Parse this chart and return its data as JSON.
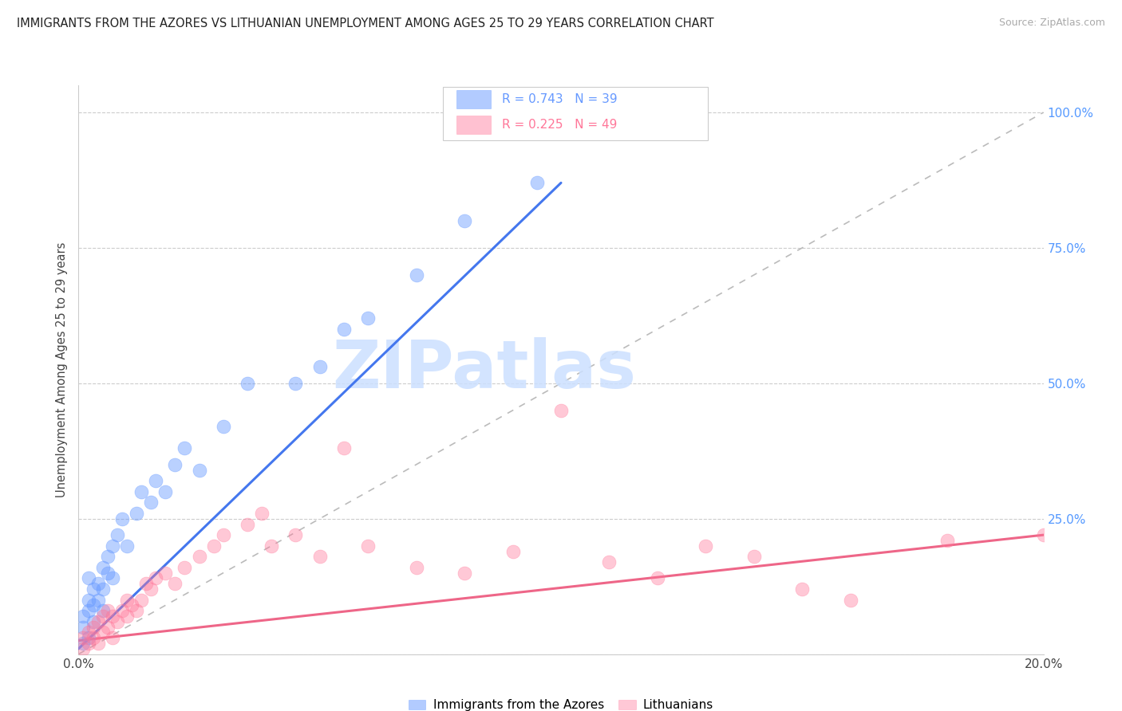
{
  "title": "IMMIGRANTS FROM THE AZORES VS LITHUANIAN UNEMPLOYMENT AMONG AGES 25 TO 29 YEARS CORRELATION CHART",
  "source": "Source: ZipAtlas.com",
  "ylabel": "Unemployment Among Ages 25 to 29 years",
  "xlim": [
    0.0,
    0.2
  ],
  "ylim": [
    0.0,
    1.05
  ],
  "yticks": [
    0.0,
    0.25,
    0.5,
    0.75,
    1.0
  ],
  "ytick_labels": [
    "",
    "25.0%",
    "50.0%",
    "75.0%",
    "100.0%"
  ],
  "xtick_labels": [
    "0.0%",
    "20.0%"
  ],
  "right_tick_color": "#5599ff",
  "pink_color": "#ff7799",
  "blue_color": "#6699ff",
  "blue_line_color": "#4477ee",
  "pink_line_color": "#ee6688",
  "blue_R": 0.743,
  "blue_N": 39,
  "pink_R": 0.225,
  "pink_N": 49,
  "background_color": "#ffffff",
  "grid_color": "#cccccc",
  "watermark_text": "ZIPatlas",
  "watermark_color": "#cce0ff",
  "legend_labels": [
    "Immigrants from the Azores",
    "Lithuanians"
  ],
  "blue_scatter_x": [
    0.001,
    0.001,
    0.001,
    0.002,
    0.002,
    0.002,
    0.002,
    0.003,
    0.003,
    0.003,
    0.004,
    0.004,
    0.005,
    0.005,
    0.005,
    0.006,
    0.006,
    0.007,
    0.007,
    0.008,
    0.009,
    0.01,
    0.012,
    0.013,
    0.015,
    0.016,
    0.018,
    0.02,
    0.022,
    0.025,
    0.03,
    0.035,
    0.045,
    0.05,
    0.055,
    0.06,
    0.07,
    0.08,
    0.095
  ],
  "blue_scatter_y": [
    0.02,
    0.05,
    0.07,
    0.03,
    0.08,
    0.1,
    0.14,
    0.06,
    0.09,
    0.12,
    0.1,
    0.13,
    0.08,
    0.12,
    0.16,
    0.15,
    0.18,
    0.2,
    0.14,
    0.22,
    0.25,
    0.2,
    0.26,
    0.3,
    0.28,
    0.32,
    0.3,
    0.35,
    0.38,
    0.34,
    0.42,
    0.5,
    0.5,
    0.53,
    0.6,
    0.62,
    0.7,
    0.8,
    0.87
  ],
  "pink_scatter_x": [
    0.001,
    0.001,
    0.002,
    0.002,
    0.003,
    0.003,
    0.004,
    0.004,
    0.005,
    0.005,
    0.006,
    0.006,
    0.007,
    0.007,
    0.008,
    0.009,
    0.01,
    0.01,
    0.011,
    0.012,
    0.013,
    0.014,
    0.015,
    0.016,
    0.018,
    0.02,
    0.022,
    0.025,
    0.028,
    0.03,
    0.035,
    0.038,
    0.04,
    0.045,
    0.05,
    0.055,
    0.06,
    0.07,
    0.08,
    0.09,
    0.1,
    0.11,
    0.12,
    0.13,
    0.14,
    0.15,
    0.16,
    0.18,
    0.2
  ],
  "pink_scatter_y": [
    0.01,
    0.03,
    0.02,
    0.04,
    0.03,
    0.05,
    0.02,
    0.06,
    0.04,
    0.07,
    0.05,
    0.08,
    0.03,
    0.07,
    0.06,
    0.08,
    0.07,
    0.1,
    0.09,
    0.08,
    0.1,
    0.13,
    0.12,
    0.14,
    0.15,
    0.13,
    0.16,
    0.18,
    0.2,
    0.22,
    0.24,
    0.26,
    0.2,
    0.22,
    0.18,
    0.38,
    0.2,
    0.16,
    0.15,
    0.19,
    0.45,
    0.17,
    0.14,
    0.2,
    0.18,
    0.12,
    0.1,
    0.21,
    0.22
  ],
  "dashed_line_color": "#bbbbbb",
  "blue_line_x0": 0.0,
  "blue_line_x1": 0.1,
  "blue_line_y0": 0.01,
  "blue_line_y1": 0.87,
  "pink_line_x0": 0.0,
  "pink_line_x1": 0.2,
  "pink_line_y0": 0.025,
  "pink_line_y1": 0.22
}
